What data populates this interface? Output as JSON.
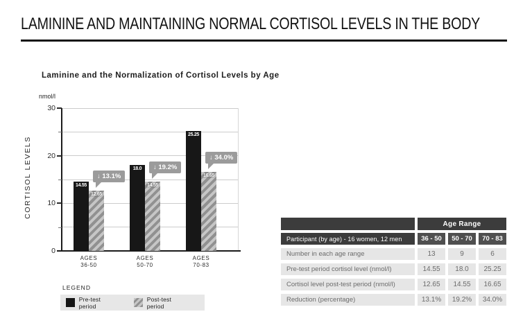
{
  "page_title": "LAMININE AND MAINTAINING NORMAL CORTISOL LEVELS IN THE BODY",
  "chart": {
    "title": "Laminine and the Normalization of Cortisol Levels by Age",
    "unit_label": "nmol/l",
    "y_axis_title": "CORTISOL LEVELS",
    "legend": {
      "heading": "LEGEND",
      "items": [
        {
          "swatch": "solid-black",
          "label": "Pre-test period"
        },
        {
          "swatch": "gray-hatch",
          "label": "Post-test period"
        }
      ]
    }
  },
  "chart_data": {
    "type": "bar",
    "title": "Laminine and the Normalization of Cortisol Levels by Age",
    "xlabel": "",
    "ylabel": "CORTISOL LEVELS",
    "y_unit": "nmol/l",
    "ylim": [
      0,
      30
    ],
    "grid": true,
    "grid_step": 5,
    "labeled_y_ticks": [
      30,
      20,
      10,
      0
    ],
    "legend_position": "bottom-left",
    "categories": [
      "AGES|36-50",
      "AGES|50-70",
      "AGES|70-83"
    ],
    "series": [
      {
        "name": "Pre-test period",
        "values": [
          14.55,
          18.0,
          25.25
        ],
        "labels": [
          "14.55",
          "18.0",
          "25.25"
        ]
      },
      {
        "name": "Post-test period",
        "values": [
          12.65,
          14.55,
          16.65
        ],
        "labels": [
          "12.65",
          "14.55",
          "16.65"
        ]
      }
    ],
    "reduction_callouts": [
      "↓ 13.1%",
      "↓ 19.2%",
      "↓ 34.0%"
    ]
  },
  "table": {
    "group_header": "Age Range",
    "participant_label": "Participant (by age) - 16 women, 12 men",
    "age_columns": [
      "36 - 50",
      "50 - 70",
      "70 - 83"
    ],
    "rows": [
      {
        "label": "Number in each age range",
        "values": [
          "13",
          "9",
          "6"
        ]
      },
      {
        "label": "Pre-test period cortisol level (nmol/l)",
        "values": [
          "14.55",
          "18.0",
          "25.25"
        ]
      },
      {
        "label": "Cortisol level post-test period (nmol/l)",
        "values": [
          "12.65",
          "14.55",
          "16.65"
        ]
      },
      {
        "label": "Reduction (percentage)",
        "values": [
          "13.1%",
          "19.2%",
          "34.0%"
        ]
      }
    ]
  },
  "colors": {
    "bar_black": "#171717",
    "hatch_light": "#c6c6c6",
    "hatch_dark": "#919191",
    "callout_gray": "#9b9b9b",
    "table_header_dark": "#3c3c3c",
    "table_header_mid": "#4f4f4f",
    "table_row_bg": "#e6e6e6",
    "legend_box_bg": "#e7e7e7"
  }
}
